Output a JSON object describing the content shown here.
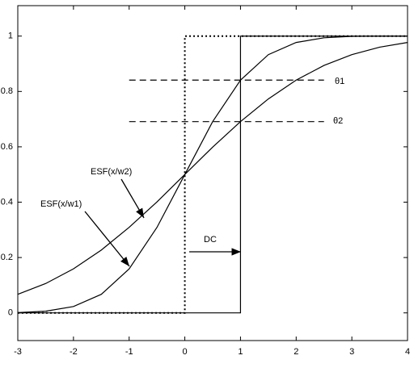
{
  "chart_data": {
    "type": "line",
    "xlim": [
      -3,
      4
    ],
    "ylim": [
      -0.1,
      1.11
    ],
    "xticks": [
      -3,
      -2,
      -1,
      0,
      1,
      2,
      3,
      4
    ],
    "yticks": [
      0,
      0.2,
      0.4,
      0.6,
      0.8,
      1
    ],
    "series": [
      {
        "color": "#000",
        "dash": "dotted",
        "x": [
          -3,
          0,
          0,
          4
        ],
        "values": [
          0,
          0,
          1,
          1
        ]
      },
      {
        "color": "#000",
        "dash": "solid",
        "x": [
          -3,
          1,
          1,
          4
        ],
        "values": [
          0,
          0,
          1,
          1
        ]
      },
      {
        "color": "#000",
        "dash": "solid",
        "x": [
          -3,
          -2.5,
          -2,
          -1.5,
          -1,
          -0.5,
          0,
          0.5,
          1,
          1.5,
          2,
          2.5,
          3,
          3.5,
          4
        ],
        "values": [
          0.001,
          0.006,
          0.023,
          0.067,
          0.159,
          0.309,
          0.5,
          0.691,
          0.841,
          0.933,
          0.977,
          0.994,
          0.999,
          1.0,
          1.0
        ]
      },
      {
        "color": "#000",
        "dash": "solid",
        "x": [
          -3,
          -2.5,
          -2,
          -1.5,
          -1,
          -0.5,
          0,
          0.5,
          1,
          1.5,
          2,
          2.5,
          3,
          3.5,
          4
        ],
        "values": [
          0.067,
          0.106,
          0.159,
          0.227,
          0.309,
          0.401,
          0.5,
          0.599,
          0.691,
          0.773,
          0.841,
          0.894,
          0.933,
          0.96,
          0.977
        ]
      },
      {
        "color": "#000",
        "dash": "dashed",
        "x": [
          -1,
          2.5
        ],
        "values": [
          0.841,
          0.841
        ]
      },
      {
        "color": "#000",
        "dash": "dashed",
        "x": [
          -1,
          2.5
        ],
        "values": [
          0.691,
          0.691
        ]
      }
    ],
    "annotations": [
      "ESF(x/w2)",
      "ESF(x/w1)",
      "DC",
      "θ1",
      "θ2"
    ]
  }
}
